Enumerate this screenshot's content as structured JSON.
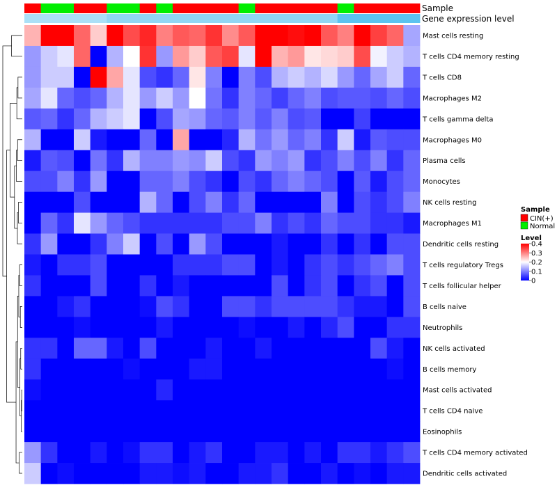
{
  "chart_data": {
    "type": "heatmap",
    "title": "",
    "annotation_labels": {
      "sample": "Sample",
      "level": "Gene expression level"
    },
    "legend": {
      "sample_title": "Sample",
      "sample_items": [
        {
          "label": "CIN(+)",
          "color": "#ff0000"
        },
        {
          "label": "Normal",
          "color": "#00ee00"
        }
      ],
      "level_title": "Level",
      "level_ticks": [
        "0.4",
        "0.3",
        "0.2",
        "0.1",
        "0"
      ],
      "level_range": [
        0,
        0.4
      ],
      "placement": "right"
    },
    "colors": {
      "low": "#0000ff",
      "mid": "#ffffff",
      "high": "#ff0000",
      "cin": "#ff0000",
      "normal": "#00ee00",
      "level_bar": "#5bc3ef"
    },
    "sample_groups": [
      "CIN(+)",
      "Normal",
      "Normal",
      "CIN(+)",
      "CIN(+)",
      "Normal",
      "Normal",
      "CIN(+)",
      "Normal",
      "CIN(+)",
      "CIN(+)",
      "CIN(+)",
      "CIN(+)",
      "Normal",
      "CIN(+)",
      "CIN(+)",
      "CIN(+)",
      "CIN(+)",
      "CIN(+)",
      "Normal",
      "CIN(+)",
      "CIN(+)",
      "CIN(+)",
      "CIN(+)"
    ],
    "level_annotation": [
      0.05,
      0.05,
      0.05,
      0.05,
      0.05,
      0.1,
      0.1,
      0.1,
      0.1,
      0.1,
      0.1,
      0.1,
      0.1,
      0.1,
      0.1,
      0.1,
      0.1,
      0.1,
      0.1,
      0.2,
      0.2,
      0.2,
      0.2,
      0.2
    ],
    "rows": [
      "Mast cells resting",
      "T cells CD4 memory resting",
      "T cells CD8",
      "Macrophages M2",
      "T cells gamma delta",
      "Macrophages M0",
      "Plasma cells",
      "Monocytes",
      "NK cells resting",
      "Macrophages M1",
      "Dendritic cells resting",
      "T cells regulatory  Tregs",
      "T cells follicular helper",
      "B cells naive",
      "Neutrophils",
      "NK cells activated",
      "B cells memory",
      "Mast cells activated",
      "T cells CD4 naive",
      "Eosinophils",
      "T cells CD4 memory activated",
      "Dendritic cells activated"
    ],
    "values": [
      [
        0.26,
        0.4,
        0.4,
        0.32,
        0.24,
        0.4,
        0.34,
        0.37,
        0.3,
        0.33,
        0.32,
        0.36,
        0.29,
        0.33,
        0.4,
        0.4,
        0.39,
        0.4,
        0.33,
        0.3,
        0.4,
        0.35,
        0.32,
        0.13
      ],
      [
        0.12,
        0.16,
        0.18,
        0.32,
        0.0,
        0.14,
        0.2,
        0.36,
        0.12,
        0.28,
        0.24,
        0.33,
        0.35,
        0.18,
        0.4,
        0.26,
        0.28,
        0.22,
        0.23,
        0.24,
        0.34,
        0.19,
        0.16,
        0.14
      ],
      [
        0.12,
        0.16,
        0.16,
        0.0,
        0.4,
        0.27,
        0.18,
        0.06,
        0.04,
        0.08,
        0.22,
        0.1,
        0.0,
        0.1,
        0.06,
        0.14,
        0.16,
        0.14,
        0.17,
        0.12,
        0.08,
        0.13,
        0.16,
        0.08
      ],
      [
        0.13,
        0.18,
        0.08,
        0.06,
        0.08,
        0.14,
        0.18,
        0.12,
        0.16,
        0.12,
        0.2,
        0.09,
        0.04,
        0.1,
        0.08,
        0.05,
        0.08,
        0.1,
        0.06,
        0.07,
        0.07,
        0.06,
        0.08,
        0.06
      ],
      [
        0.07,
        0.08,
        0.04,
        0.08,
        0.14,
        0.16,
        0.18,
        0.0,
        0.06,
        0.13,
        0.12,
        0.08,
        0.07,
        0.1,
        0.07,
        0.1,
        0.06,
        0.07,
        0.0,
        0.0,
        0.05,
        0.0,
        0.0,
        0.0
      ],
      [
        0.14,
        0.0,
        0.0,
        0.16,
        0.02,
        0.0,
        0.0,
        0.08,
        0.0,
        0.27,
        0.0,
        0.0,
        0.03,
        0.14,
        0.09,
        0.12,
        0.08,
        0.1,
        0.04,
        0.16,
        0.02,
        0.07,
        0.06,
        0.06
      ],
      [
        0.02,
        0.07,
        0.06,
        0.0,
        0.09,
        0.04,
        0.14,
        0.1,
        0.1,
        0.12,
        0.11,
        0.16,
        0.06,
        0.04,
        0.12,
        0.1,
        0.12,
        0.04,
        0.06,
        0.1,
        0.06,
        0.1,
        0.04,
        0.08
      ],
      [
        0.06,
        0.06,
        0.1,
        0.04,
        0.12,
        0.0,
        0.0,
        0.08,
        0.08,
        0.1,
        0.06,
        0.04,
        0.0,
        0.06,
        0.04,
        0.08,
        0.1,
        0.08,
        0.06,
        0.0,
        0.07,
        0.02,
        0.06,
        0.08
      ],
      [
        0.0,
        0.0,
        0.0,
        0.06,
        0.0,
        0.0,
        0.0,
        0.14,
        0.08,
        0.0,
        0.06,
        0.1,
        0.04,
        0.08,
        0.0,
        0.0,
        0.0,
        0.0,
        0.1,
        0.0,
        0.06,
        0.04,
        0.06,
        0.1
      ],
      [
        0.0,
        0.08,
        0.04,
        0.18,
        0.12,
        0.08,
        0.06,
        0.04,
        0.04,
        0.04,
        0.04,
        0.04,
        0.06,
        0.06,
        0.1,
        0.04,
        0.06,
        0.04,
        0.08,
        0.06,
        0.06,
        0.04,
        0.04,
        0.02
      ],
      [
        0.04,
        0.12,
        0.0,
        0.0,
        0.04,
        0.1,
        0.16,
        0.0,
        0.06,
        0.0,
        0.12,
        0.06,
        0.0,
        0.0,
        0.0,
        0.02,
        0.0,
        0.0,
        0.04,
        0.0,
        0.04,
        0.0,
        0.06,
        0.06
      ],
      [
        0.02,
        0.0,
        0.04,
        0.04,
        0.06,
        0.0,
        0.0,
        0.0,
        0.0,
        0.04,
        0.04,
        0.04,
        0.06,
        0.06,
        0.0,
        0.02,
        0.0,
        0.04,
        0.06,
        0.04,
        0.06,
        0.08,
        0.1,
        0.06
      ],
      [
        0.04,
        0.0,
        0.0,
        0.0,
        0.06,
        0.0,
        0.0,
        0.04,
        0.0,
        0.02,
        0.0,
        0.0,
        0.0,
        0.0,
        0.0,
        0.06,
        0.0,
        0.04,
        0.06,
        0.0,
        0.04,
        0.06,
        0.0,
        0.06
      ],
      [
        0.0,
        0.0,
        0.02,
        0.04,
        0.0,
        0.0,
        0.0,
        0.01,
        0.06,
        0.04,
        0.0,
        0.0,
        0.06,
        0.06,
        0.04,
        0.06,
        0.06,
        0.06,
        0.06,
        0.04,
        0.02,
        0.02,
        0.0,
        0.06
      ],
      [
        0.0,
        0.0,
        0.0,
        0.01,
        0.0,
        0.0,
        0.0,
        0.0,
        0.02,
        0.0,
        0.0,
        0.0,
        0.0,
        0.01,
        0.0,
        0.0,
        0.02,
        0.0,
        0.03,
        0.06,
        0.0,
        0.0,
        0.04,
        0.04
      ],
      [
        0.04,
        0.04,
        0.0,
        0.08,
        0.08,
        0.02,
        0.0,
        0.06,
        0.0,
        0.0,
        0.0,
        0.02,
        0.0,
        0.0,
        0.02,
        0.0,
        0.0,
        0.0,
        0.0,
        0.0,
        0.0,
        0.06,
        0.02,
        0.0
      ],
      [
        0.04,
        0.0,
        0.0,
        0.0,
        0.0,
        0.0,
        0.01,
        0.0,
        0.0,
        0.0,
        0.02,
        0.02,
        0.0,
        0.0,
        0.0,
        0.0,
        0.0,
        0.0,
        0.0,
        0.0,
        0.0,
        0.0,
        0.01,
        0.0
      ],
      [
        0.01,
        0.0,
        0.0,
        0.0,
        0.0,
        0.0,
        0.0,
        0.0,
        0.03,
        0.0,
        0.0,
        0.0,
        0.0,
        0.0,
        0.0,
        0.0,
        0.0,
        0.0,
        0.0,
        0.0,
        0.0,
        0.0,
        0.0,
        0.0
      ],
      [
        0.0,
        0.0,
        0.0,
        0.0,
        0.0,
        0.0,
        0.0,
        0.0,
        0.0,
        0.0,
        0.0,
        0.0,
        0.0,
        0.0,
        0.0,
        0.0,
        0.0,
        0.0,
        0.0,
        0.0,
        0.0,
        0.0,
        0.0,
        0.0
      ],
      [
        0.0,
        0.0,
        0.0,
        0.0,
        0.0,
        0.0,
        0.0,
        0.0,
        0.0,
        0.0,
        0.0,
        0.0,
        0.0,
        0.0,
        0.0,
        0.0,
        0.0,
        0.0,
        0.0,
        0.0,
        0.0,
        0.0,
        0.0,
        0.0
      ],
      [
        0.12,
        0.04,
        0.0,
        0.0,
        0.02,
        0.0,
        0.01,
        0.04,
        0.04,
        0.0,
        0.02,
        0.04,
        0.0,
        0.0,
        0.02,
        0.02,
        0.0,
        0.02,
        0.0,
        0.04,
        0.04,
        0.02,
        0.04,
        0.06
      ],
      [
        0.16,
        0.0,
        0.01,
        0.0,
        0.0,
        0.0,
        0.0,
        0.02,
        0.02,
        0.01,
        0.02,
        0.0,
        0.0,
        0.02,
        0.02,
        0.04,
        0.0,
        0.0,
        0.02,
        0.0,
        0.01,
        0.0,
        0.02,
        0.02
      ]
    ]
  }
}
